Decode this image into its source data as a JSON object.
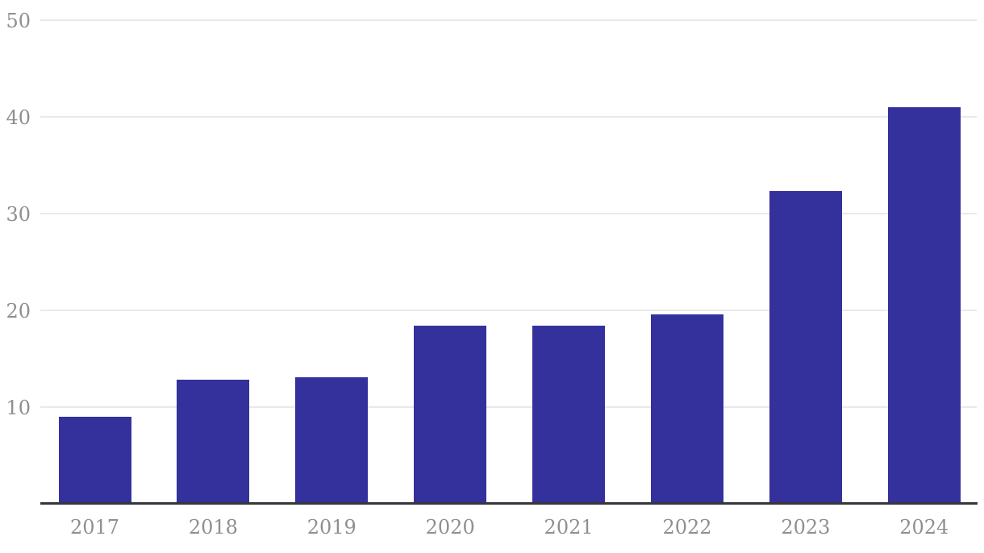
{
  "chart_data": {
    "type": "bar",
    "title": "",
    "xlabel": "",
    "ylabel": "",
    "categories": [
      "2017",
      "2018",
      "2019",
      "2020",
      "2021",
      "2022",
      "2023",
      "2024"
    ],
    "values": [
      9.0,
      12.8,
      13.1,
      18.4,
      18.4,
      19.6,
      32.3,
      41.0
    ],
    "ylim": [
      0,
      50
    ],
    "yticks": [
      10,
      20,
      30,
      40,
      50
    ],
    "grid": "horizontal-only",
    "legend": "none",
    "colors": {
      "bar": "#34319c",
      "gridline": "#e9e9e9",
      "axis_line": "#36363c",
      "tick_label": "#8f8f8f",
      "background": "#ffffff"
    }
  }
}
